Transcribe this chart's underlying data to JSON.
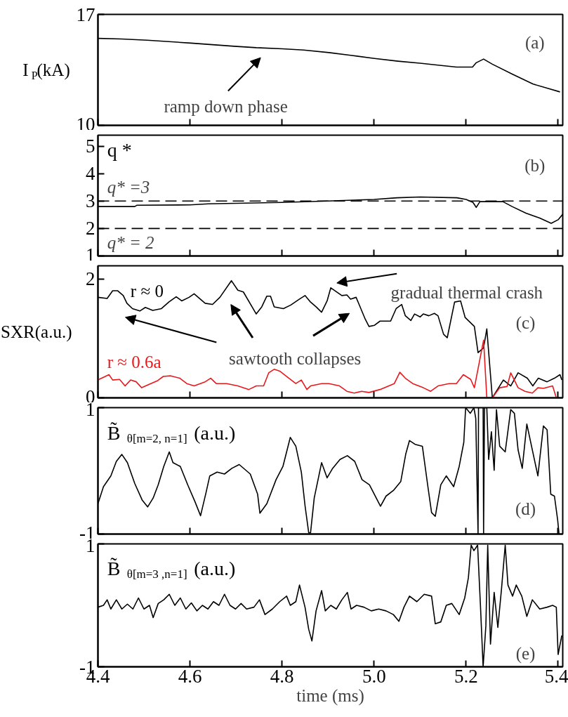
{
  "chart_data": [
    {
      "type": "line",
      "ylabel": "I$_{P}$(kA)",
      "xlim": [
        4.4,
        5.41
      ],
      "xticks": [
        4.4,
        4.6,
        4.8,
        5.0,
        5.2,
        5.4
      ],
      "ylim": [
        10,
        17
      ],
      "yticks": [
        10,
        17
      ],
      "tick_labels": "y",
      "annotations": [
        "ramp down phase",
        "(a)"
      ],
      "series": [
        {
          "color": "#000000",
          "x": [
            4.4,
            4.451,
            4.507,
            4.602,
            4.696,
            4.744,
            4.801,
            4.847,
            4.902,
            4.949,
            5.001,
            5.052,
            5.1,
            5.139,
            5.179,
            5.206,
            5.214,
            5.222,
            5.238,
            5.257,
            5.301,
            5.345,
            5.376,
            5.404
          ],
          "values": [
            15.49,
            15.45,
            15.37,
            15.19,
            14.99,
            14.9,
            14.83,
            14.75,
            14.59,
            14.42,
            14.22,
            14.05,
            13.92,
            13.8,
            13.68,
            13.68,
            13.68,
            13.95,
            14.18,
            13.86,
            13.22,
            12.61,
            12.35,
            12.11
          ]
        }
      ]
    },
    {
      "type": "line",
      "ylabel": "q *",
      "xlim": [
        4.4,
        5.41
      ],
      "xticks": [
        4.4,
        4.6,
        4.8,
        5.0,
        5.2,
        5.4
      ],
      "ylim": [
        1,
        5.4
      ],
      "yticks": [
        1,
        2,
        3,
        4,
        5
      ],
      "tick_labels": "y",
      "annotations": [
        "(b)"
      ],
      "ref_lines": [
        {
          "axis": "y",
          "value": 3,
          "label": "q* =3",
          "color": "#000000",
          "line_style": "dashed"
        },
        {
          "axis": "y",
          "value": 2,
          "label": "q* = 2",
          "color": "#000000",
          "line_style": "dashed"
        }
      ],
      "series": [
        {
          "color": "#000000",
          "x": [
            4.4,
            4.48,
            4.485,
            4.6,
            4.64,
            4.8,
            4.9,
            5.0,
            5.05,
            5.1,
            5.18,
            5.2,
            5.215,
            5.222,
            5.23,
            5.28,
            5.3,
            5.33,
            5.36,
            5.385,
            5.4,
            5.41
          ],
          "values": [
            2.8,
            2.8,
            2.85,
            2.86,
            2.9,
            2.95,
            3.0,
            3.06,
            3.12,
            3.15,
            3.12,
            3.06,
            2.95,
            2.77,
            2.98,
            2.98,
            2.8,
            2.56,
            2.38,
            2.19,
            2.32,
            2.52
          ]
        }
      ]
    },
    {
      "type": "line",
      "ylabel": "SXR(a.u.)",
      "xlim": [
        4.4,
        5.41
      ],
      "xticks": [
        4.4,
        4.6,
        4.8,
        5.0,
        5.2,
        5.4
      ],
      "ylim": [
        0,
        2.22
      ],
      "yticks": [
        0,
        2
      ],
      "tick_labels": "y",
      "annotations": [
        "gradual thermal crash",
        "sawtooth collapses",
        "(c)"
      ],
      "series": [
        {
          "name": "r ≈ 0",
          "color": "#000000",
          "x": [
            4.4,
            4.42,
            4.432,
            4.443,
            4.455,
            4.463,
            4.475,
            4.491,
            4.503,
            4.519,
            4.538,
            4.554,
            4.57,
            4.582,
            4.598,
            4.609,
            4.633,
            4.649,
            4.665,
            4.69,
            4.704,
            4.716,
            4.744,
            4.756,
            4.767,
            4.775,
            4.783,
            4.803,
            4.819,
            4.838,
            4.85,
            4.862,
            4.874,
            4.886,
            4.898,
            4.906,
            4.93,
            4.941,
            4.949,
            4.961,
            4.981,
            4.989,
            5.001,
            5.013,
            5.036,
            5.048,
            5.06,
            5.068,
            5.08,
            5.088,
            5.1,
            5.107,
            5.119,
            5.131,
            5.139,
            5.151,
            5.159,
            5.175,
            5.188,
            5.198,
            5.218,
            5.226,
            5.238,
            5.245,
            5.257,
            5.281,
            5.297,
            5.313,
            5.333,
            5.345,
            5.357,
            5.376,
            5.392,
            5.404,
            5.408
          ],
          "values": [
            1.69,
            1.67,
            1.8,
            1.8,
            1.72,
            1.59,
            1.5,
            1.46,
            1.52,
            1.47,
            1.5,
            1.61,
            1.7,
            1.63,
            1.69,
            1.75,
            1.59,
            1.57,
            1.69,
            1.97,
            1.81,
            1.78,
            1.41,
            1.53,
            1.71,
            1.71,
            1.53,
            1.5,
            1.56,
            1.66,
            1.72,
            1.61,
            1.53,
            1.44,
            1.63,
            1.85,
            1.72,
            1.73,
            1.66,
            1.69,
            1.32,
            1.2,
            1.22,
            1.29,
            1.29,
            1.5,
            1.57,
            1.38,
            1.3,
            1.41,
            1.36,
            1.41,
            1.38,
            1.42,
            1.38,
            1.07,
            1.01,
            1.61,
            1.63,
            1.35,
            1.2,
            0.76,
            0.84,
            1.16,
            0,
            0.3,
            0.2,
            0.42,
            0.33,
            0.2,
            0.33,
            0.27,
            0.33,
            0.39,
            0.3
          ]
        },
        {
          "name": "r ≈ 0.6a",
          "color": "#e8191c",
          "x": [
            4.4,
            4.424,
            4.432,
            4.447,
            4.459,
            4.471,
            4.483,
            4.495,
            4.515,
            4.53,
            4.542,
            4.558,
            4.578,
            4.593,
            4.609,
            4.633,
            4.645,
            4.657,
            4.68,
            4.704,
            4.728,
            4.744,
            4.76,
            4.771,
            4.783,
            4.795,
            4.815,
            4.83,
            4.842,
            4.854,
            4.862,
            4.886,
            4.902,
            4.925,
            4.941,
            4.957,
            4.973,
            4.989,
            5.013,
            5.044,
            5.056,
            5.068,
            5.084,
            5.107,
            5.123,
            5.139,
            5.163,
            5.179,
            5.194,
            5.21,
            5.218,
            5.238,
            5.245,
            5.257,
            5.273,
            5.289,
            5.297,
            5.313,
            5.328,
            5.344,
            5.356,
            5.368,
            5.388,
            5.396,
            5.408
          ],
          "values": [
            0.3,
            0.39,
            0.3,
            0.31,
            0.2,
            0.3,
            0.27,
            0.17,
            0.24,
            0.29,
            0.36,
            0.37,
            0.33,
            0.24,
            0.2,
            0.27,
            0.33,
            0.24,
            0.24,
            0.2,
            0.14,
            0.2,
            0.2,
            0.42,
            0.48,
            0.45,
            0.33,
            0.24,
            0.3,
            0.14,
            0.2,
            0.24,
            0.24,
            0.2,
            0.11,
            0.08,
            0.11,
            0.09,
            0.14,
            0.24,
            0.43,
            0.33,
            0.24,
            0.17,
            0.11,
            0.2,
            0.24,
            0.24,
            0.39,
            0.31,
            0.17,
            0.97,
            0,
            0,
            0.17,
            0.19,
            0.42,
            0.17,
            0.11,
            0.08,
            0.17,
            0.16,
            0.2,
            0,
            0
          ]
        }
      ]
    },
    {
      "type": "line",
      "ylabel": "B̃$_{θ[m=2, n=1]}$(a.u.)",
      "xlim": [
        4.4,
        5.41
      ],
      "xticks": [
        4.4,
        4.6,
        4.8,
        5.0,
        5.2,
        5.4
      ],
      "ylim": [
        -1,
        1
      ],
      "yticks": [
        -1,
        1
      ],
      "tick_labels": "y",
      "annotations": [
        "(d)"
      ],
      "series": [
        {
          "color": "#000000",
          "x": [
            4.4,
            4.412,
            4.428,
            4.44,
            4.452,
            4.464,
            4.48,
            4.496,
            4.508,
            4.52,
            4.531,
            4.543,
            4.555,
            4.563,
            4.579,
            4.595,
            4.611,
            4.623,
            4.635,
            4.643,
            4.659,
            4.675,
            4.691,
            4.707,
            4.731,
            4.747,
            4.752,
            4.767,
            4.787,
            4.802,
            4.818,
            4.83,
            4.842,
            4.85,
            4.858,
            4.862,
            4.87,
            4.886,
            4.898,
            4.91,
            4.926,
            4.942,
            4.958,
            4.974,
            4.99,
            5.014,
            5.026,
            5.042,
            5.058,
            5.069,
            5.077,
            5.089,
            5.105,
            5.117,
            5.125,
            5.133,
            5.145,
            5.157,
            5.173,
            5.185,
            5.195,
            5.199,
            5.209,
            5.217,
            5.221,
            5.226,
            5.227,
            5.237,
            5.238,
            5.24,
            5.245,
            5.249,
            5.255,
            5.261,
            5.266,
            5.273,
            5.285,
            5.297,
            5.305,
            5.313,
            5.322,
            5.332,
            5.344,
            5.356,
            5.368,
            5.376,
            5.384,
            5.392,
            5.399,
            5.402
          ],
          "values": [
            -0.52,
            -0.25,
            -0.08,
            0.15,
            0.26,
            0.13,
            -0.2,
            -0.46,
            -0.57,
            -0.43,
            -0.22,
            0.07,
            0.3,
            0.13,
            0.07,
            -0.22,
            -0.49,
            -0.71,
            -0.34,
            -0.08,
            -0.02,
            -0.05,
            0.04,
            0.1,
            -0.05,
            -0.37,
            -0.67,
            -0.52,
            -0.14,
            0.07,
            0.53,
            0.39,
            -0.02,
            -0.55,
            -0.98,
            -0.98,
            -0.43,
            0.13,
            -0.11,
            0.04,
            0.18,
            0.24,
            0.15,
            -0.14,
            -0.22,
            -0.56,
            -0.4,
            -0.31,
            -0.17,
            0.27,
            0.48,
            0.42,
            0.39,
            -0.25,
            -0.66,
            -0.72,
            -0.22,
            -0.08,
            -0.25,
            0.07,
            0.45,
            1,
            0.91,
            1,
            0.83,
            -1,
            1,
            1,
            -1,
            1,
            1,
            0.18,
            0.62,
            0.01,
            0.97,
            0.39,
            0.3,
            0.97,
            0.91,
            0.33,
            0.04,
            0.74,
            0.33,
            -0.08,
            0.71,
            0.65,
            -0.37,
            -0.4,
            -0.78,
            -1
          ]
        }
      ]
    },
    {
      "type": "line",
      "ylabel": "B̃$_{θ[m=3 ,n=1]}$(a.u.)",
      "xlabel": "time (ms)",
      "xlim": [
        4.4,
        5.41
      ],
      "xticks": [
        4.4,
        4.6,
        4.8,
        {
          "value": 5.0,
          "label": "5.0"
        },
        5.2,
        5.4
      ],
      "ylim": [
        -1,
        1
      ],
      "yticks": [
        -1,
        1
      ],
      "annotations": [
        "(e)"
      ],
      "series": [
        {
          "color": "#000000",
          "x": [
            4.4,
            4.412,
            4.42,
            4.428,
            4.44,
            4.452,
            4.464,
            4.476,
            4.488,
            4.5,
            4.512,
            4.52,
            4.531,
            4.543,
            4.555,
            4.567,
            4.579,
            4.591,
            4.603,
            4.615,
            4.627,
            4.639,
            4.651,
            4.663,
            4.675,
            4.687,
            4.699,
            4.711,
            4.723,
            4.739,
            4.751,
            4.763,
            4.779,
            4.795,
            4.81,
            4.818,
            4.83,
            4.838,
            4.85,
            4.858,
            4.865,
            4.874,
            4.886,
            4.894,
            4.906,
            4.918,
            4.93,
            4.942,
            4.95,
            4.962,
            4.978,
            4.994,
            5.01,
            5.026,
            5.042,
            5.054,
            5.065,
            5.077,
            5.093,
            5.109,
            5.125,
            5.133,
            5.145,
            5.157,
            5.169,
            5.185,
            5.197,
            5.205,
            5.211,
            5.217,
            5.225,
            5.231,
            5.237,
            5.243,
            5.247,
            5.253,
            5.261,
            5.269,
            5.277,
            5.285,
            5.291,
            5.301,
            5.309,
            5.321,
            5.332,
            5.344,
            5.36,
            5.376,
            5.388,
            5.396,
            5.4,
            5.408
          ],
          "values": [
            -0.03,
            0.0,
            0.09,
            -0.06,
            0.09,
            -0.06,
            0.02,
            -0.06,
            0.12,
            -0.06,
            0.0,
            -0.2,
            0.03,
            0.09,
            0.18,
            0.0,
            0.12,
            -0.06,
            0.04,
            -0.09,
            0.0,
            -0.06,
            0.06,
            0.0,
            0.18,
            0.0,
            -0.06,
            0.03,
            -0.06,
            -0.03,
            0.09,
            -0.15,
            -0.06,
            0.06,
            0.15,
            0.0,
            0.06,
            0.33,
            -0.03,
            -0.39,
            -0.58,
            -0.09,
            0.24,
            -0.09,
            0.0,
            -0.06,
            0.09,
            0.21,
            -0.06,
            0.0,
            -0.03,
            -0.09,
            -0.06,
            -0.09,
            -0.15,
            -0.26,
            -0.03,
            0.15,
            0.06,
            0.18,
            0.15,
            -0.3,
            -0.27,
            0.0,
            0.03,
            -0.15,
            0.12,
            0.45,
            0.98,
            0.89,
            0.98,
            0.03,
            -1,
            -0.33,
            0.98,
            -0.63,
            0.21,
            -0.36,
            0.27,
            0.98,
            0.33,
            0.15,
            0.33,
            0.15,
            -0.18,
            0.09,
            -0.06,
            -0.03,
            0.0,
            -0.03,
            -0.8,
            -0.49
          ]
        }
      ]
    }
  ]
}
